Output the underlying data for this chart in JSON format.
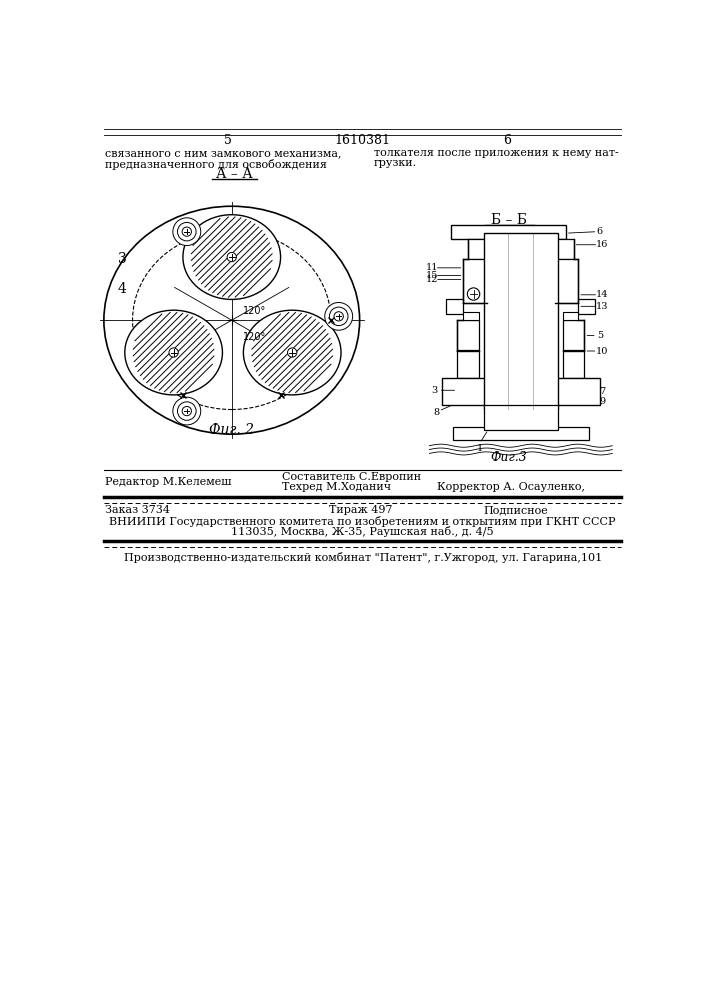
{
  "bg_color": "#ffffff",
  "fig2_label": "А – А",
  "fig3_label": "Б – Б",
  "fig2_caption": "Фиг. 2",
  "fig3_caption": "Фиг.3",
  "footer_line1_left": "Редактор М.Келемеш",
  "footer_line1_center": "Составитель С.Европин",
  "footer_line2_center": "Техред М.Ходанич",
  "footer_line2_right": "Корректор А. Осауленко,",
  "footer_order": "Заказ 3734",
  "footer_tirazh": "Тираж 497",
  "footer_podpisnoe": "Подписное",
  "footer_vnipi": "ВНИИПИ Государственного комитета по изобретениям и открытиям при ГКНТ СССР",
  "footer_address": "113035, Москва, Ж-35, Раушская наб., д. 4/5",
  "footer_kombinat": "Производственно-издательский комбинат \"Патент\", г.Ужгород, ул. Гагарина,101"
}
